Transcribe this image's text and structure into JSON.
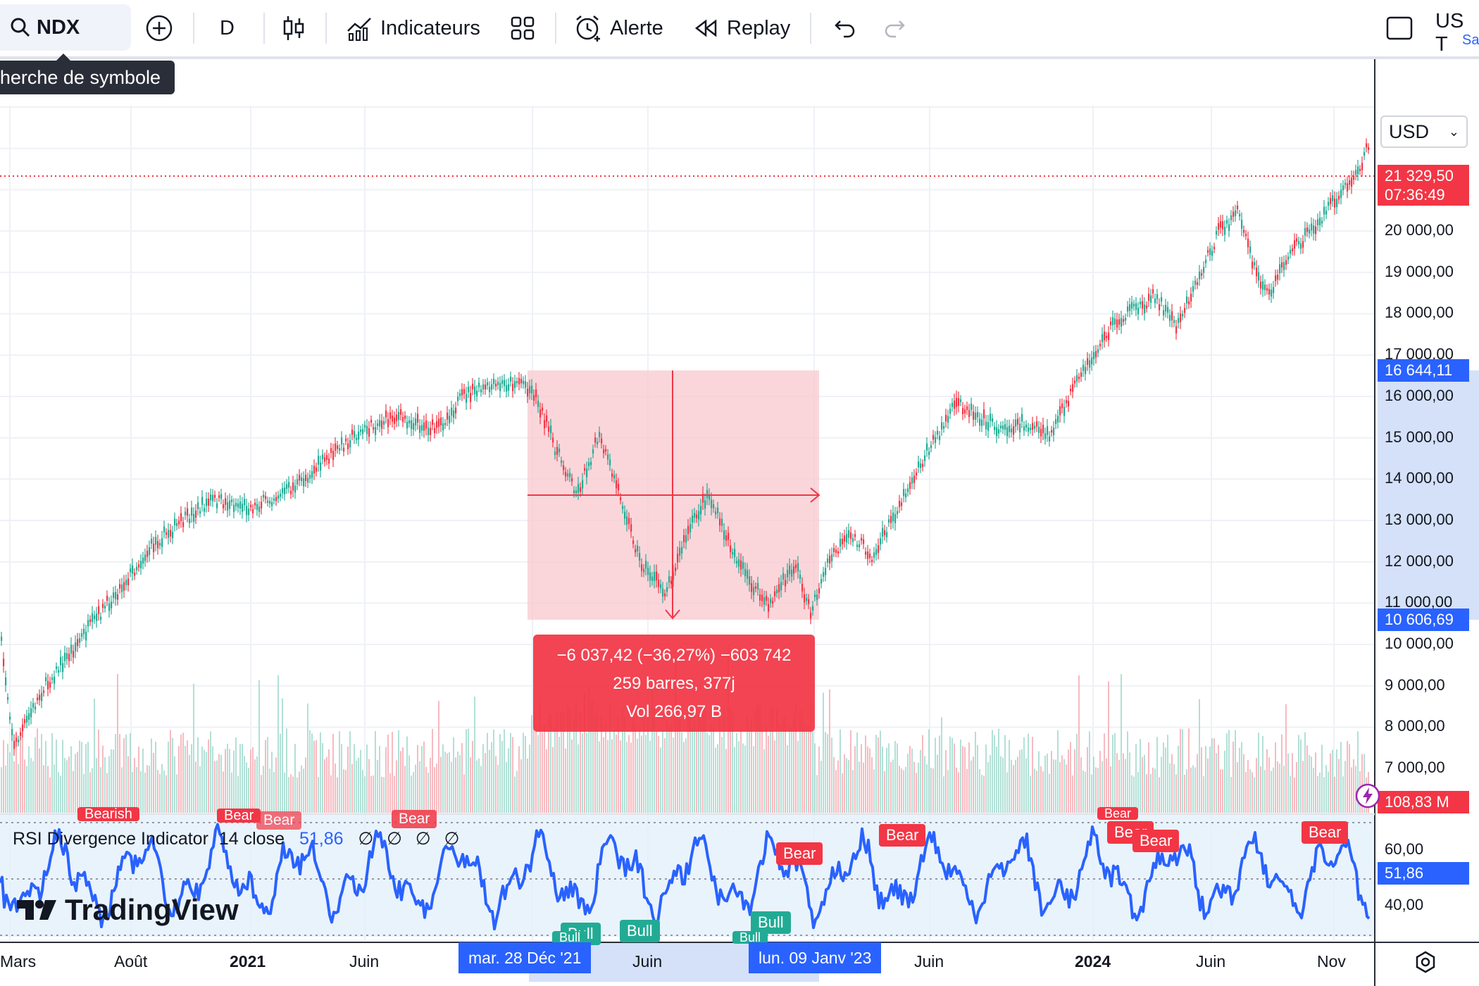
{
  "toolbar": {
    "symbol": "NDX",
    "interval": "D",
    "indicators_label": "Indicateurs",
    "alert_label": "Alerte",
    "replay_label": "Replay",
    "search_tooltip": "herche de symbole",
    "market_label": "US T",
    "market_sub": "Sa"
  },
  "price_axis": {
    "currency": "USD",
    "labels": [
      "20 000,00",
      "19 000,00",
      "18 000,00",
      "17 000,00",
      "16 000,00",
      "15 000,00",
      "14 000,00",
      "13 000,00",
      "12 000,00",
      "11 000,00",
      "10 000,00",
      "9 000,00",
      "8 000,00",
      "7 000,00"
    ],
    "last_price": "21 329,50",
    "countdown": "07:36:49",
    "range_high": "16 644,11",
    "range_low": "10 606,69",
    "volume": "108,83 M",
    "rsi_levels": [
      "60,00",
      "40,00"
    ],
    "rsi_value": "51,86"
  },
  "measure": {
    "line1": "−6 037,42 (−36,27%) −603 742",
    "line2": "259 barres, 377j",
    "line3": "Vol 266,97 B"
  },
  "rsi": {
    "name": "RSI Divergence Indicator",
    "params": "14 close",
    "value": "51,86",
    "placeholders": "∅ ∅ ∅ ∅",
    "badges": [
      "Bear",
      "Bear",
      "Bear",
      "Bear",
      "Bear",
      "Bear",
      "Bear",
      "Bear",
      "Bull",
      "Bull",
      "Bull",
      "Bull",
      "Bull",
      "Bearish",
      "Bear"
    ]
  },
  "branding": {
    "logo_text": "TradingView"
  },
  "time_axis": {
    "labels": [
      "Mars",
      "Août",
      "2021",
      "Juin",
      "Juin",
      "Juin",
      "2024",
      "Juin",
      "Nov"
    ],
    "range_start": "mar. 28 Déc '21",
    "range_end": "lun. 09 Janv '23"
  },
  "colors": {
    "up": "#22ab94",
    "down": "#f23645",
    "rsi_line": "#2962ff",
    "range_fill": "#f8c8cf",
    "accent": "#2962ff"
  }
}
